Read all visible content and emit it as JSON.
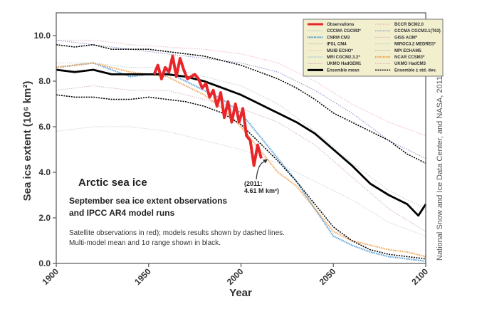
{
  "chart_data": {
    "type": "line",
    "title": "Arctic sea ice",
    "subtitle_lines": [
      "September sea ice extent observations",
      "and IPCC AR4 model runs"
    ],
    "note_lines": [
      "Satellite observations in red); models results shown by dashed lines.",
      "Multi-model mean and 1σ range shown in black."
    ],
    "callout_lines": [
      "(2011:",
      "4.61 M km²)"
    ],
    "callout_point": {
      "x": 2011,
      "y": 4.61
    },
    "xlabel": "Year",
    "ylabel": "Sea ics extent (10⁶ km²)",
    "xlim": [
      1900,
      2100
    ],
    "ylim": [
      0,
      11
    ],
    "xticks": [
      1900,
      1950,
      2000,
      2050,
      2100
    ],
    "yticks": [
      0,
      2,
      4,
      6,
      8,
      10
    ],
    "ytick_labels": [
      "0.0",
      "2.0",
      "4.0",
      "6.0",
      "8.0",
      "10.0"
    ],
    "credit": "National Snow and Ice Data Center, and NASA, 2011",
    "legend_position": "top-right",
    "legend": [
      {
        "label": "Observations",
        "color": "#e8262a",
        "style": "solid-thick"
      },
      {
        "label": "CCCMA CGCM3*",
        "color": "#9fb8c8",
        "style": "dotted"
      },
      {
        "label": "CNRM CM3",
        "color": "#3a8fd0",
        "style": "dotted-thick"
      },
      {
        "label": "IPSL CM4",
        "color": "#b8b0a8",
        "style": "dotted"
      },
      {
        "label": "MUIB ECHO*",
        "color": "#f0b8b0",
        "style": "dotted"
      },
      {
        "label": "MRI CGCM2.3.2*",
        "color": "#7fb8d8",
        "style": "dotted"
      },
      {
        "label": "UKMO HadGEM1",
        "color": "#c8a0b0",
        "style": "dotted"
      },
      {
        "label": "Ensemble mean",
        "color": "#000000",
        "style": "solid-thick"
      },
      {
        "label": "BCCR BCM2.0",
        "color": "#f0a0a0",
        "style": "dotted"
      },
      {
        "label": "CCCMA CGCM3.1(T63)",
        "color": "#7070b8",
        "style": "dotted"
      },
      {
        "label": "GISS AOM*",
        "color": "#e8a8c0",
        "style": "dotted"
      },
      {
        "label": "MIROC3.2 MEDRES*",
        "color": "#a8c8c0",
        "style": "dotted"
      },
      {
        "label": "MPI ECHAM5",
        "color": "#98b0a0",
        "style": "dotted"
      },
      {
        "label": "NCAR CCSM3*",
        "color": "#f09a40",
        "style": "dotted-thick"
      },
      {
        "label": "UKMO HadCM3",
        "color": "#d0a8b8",
        "style": "dotted"
      },
      {
        "label": "Ensemble ± std. dev.",
        "color": "#000000",
        "style": "dashed"
      }
    ],
    "series": [
      {
        "name": "Observations",
        "color": "#e8262a",
        "x": [
          1953,
          1955,
          1957,
          1959,
          1961,
          1963,
          1965,
          1967,
          1969,
          1971,
          1973,
          1975,
          1977,
          1979,
          1981,
          1983,
          1985,
          1987,
          1989,
          1991,
          1993,
          1995,
          1997,
          1999,
          2001,
          2003,
          2005,
          2007,
          2009,
          2011
        ],
        "y": [
          8.3,
          8.7,
          8.1,
          8.6,
          8.4,
          9.1,
          8.2,
          9.0,
          8.5,
          8.1,
          8.2,
          8.3,
          8.1,
          7.7,
          7.9,
          7.3,
          7.6,
          6.9,
          7.5,
          6.4,
          7.1,
          6.2,
          7.0,
          6.2,
          6.8,
          5.6,
          5.4,
          4.3,
          5.2,
          4.61
        ]
      },
      {
        "name": "Ensemble mean",
        "color": "#000000",
        "x": [
          1900,
          1910,
          1920,
          1930,
          1940,
          1950,
          1960,
          1970,
          1980,
          1990,
          2000,
          2010,
          2020,
          2030,
          2040,
          2050,
          2060,
          2070,
          2080,
          2090,
          2096,
          2100
        ],
        "y": [
          8.5,
          8.4,
          8.5,
          8.3,
          8.3,
          8.3,
          8.3,
          8.2,
          8.0,
          7.7,
          7.4,
          7.0,
          6.6,
          6.2,
          5.7,
          5.0,
          4.3,
          3.5,
          3.0,
          2.6,
          2.1,
          2.6
        ]
      },
      {
        "name": "Ensemble + std. dev.",
        "color": "#000000",
        "x": [
          1900,
          1910,
          1920,
          1930,
          1940,
          1950,
          1960,
          1970,
          1980,
          1990,
          2000,
          2010,
          2020,
          2030,
          2040,
          2050,
          2060,
          2070,
          2080,
          2090,
          2100
        ],
        "y": [
          9.6,
          9.5,
          9.6,
          9.4,
          9.4,
          9.4,
          9.3,
          9.2,
          9.1,
          8.9,
          8.7,
          8.4,
          8.1,
          7.7,
          7.2,
          6.6,
          6.2,
          5.8,
          5.4,
          4.8,
          4.4
        ]
      },
      {
        "name": "Ensemble - std. dev.",
        "color": "#000000",
        "x": [
          1900,
          1910,
          1920,
          1930,
          1940,
          1950,
          1960,
          1970,
          1980,
          1990,
          2000,
          2010,
          2020,
          2030,
          2040,
          2050,
          2060,
          2070,
          2080,
          2090,
          2100
        ],
        "y": [
          7.4,
          7.3,
          7.3,
          7.2,
          7.2,
          7.3,
          7.2,
          7.1,
          6.9,
          6.6,
          6.1,
          5.3,
          4.5,
          3.6,
          2.6,
          1.6,
          1.0,
          0.6,
          0.4,
          0.3,
          0.2
        ]
      },
      {
        "name": "CNRM CM3",
        "color": "#3a8fd0",
        "x": [
          1900,
          1920,
          1940,
          1960,
          1980,
          1990,
          2000,
          2010,
          2020,
          2030,
          2040,
          2050,
          2060,
          2070,
          2080,
          2090,
          2100
        ],
        "y": [
          8.6,
          8.8,
          8.2,
          8.4,
          7.6,
          7.2,
          6.6,
          5.6,
          4.6,
          3.6,
          2.4,
          1.2,
          0.8,
          0.5,
          0.3,
          0.2,
          0.1
        ]
      },
      {
        "name": "NCAR CCSM3*",
        "color": "#f09a40",
        "x": [
          1900,
          1920,
          1940,
          1960,
          1980,
          1990,
          2000,
          2010,
          2020,
          2030,
          2040,
          2050,
          2060,
          2070,
          2080,
          2090,
          2100
        ],
        "y": [
          8.6,
          8.8,
          8.4,
          8.2,
          7.4,
          6.8,
          6.0,
          5.0,
          4.0,
          3.4,
          2.4,
          1.4,
          1.0,
          0.8,
          0.6,
          0.5,
          0.3
        ]
      },
      {
        "name": "IPSL CM4",
        "color": "#c8c8c8",
        "x": [
          1900,
          1920,
          1940,
          1960,
          1980,
          2000,
          2020,
          2040,
          2060,
          2080,
          2100
        ],
        "y": [
          5.8,
          6.0,
          6.0,
          5.8,
          5.4,
          5.0,
          4.4,
          3.6,
          2.8,
          1.8,
          1.2
        ]
      },
      {
        "name": "GISS AOM*",
        "color": "#e8a8c0",
        "x": [
          1900,
          1920,
          1940,
          1960,
          1980,
          2000,
          2020,
          2040,
          2060,
          2080,
          2100
        ],
        "y": [
          9.8,
          9.8,
          9.6,
          9.5,
          9.4,
          9.2,
          8.8,
          8.0,
          7.0,
          6.2,
          5.6
        ]
      },
      {
        "name": "CCCMA CGCM3.1(T63)",
        "color": "#7070b8",
        "x": [
          1900,
          1920,
          1940,
          1960,
          1980,
          2000,
          2020,
          2040,
          2060,
          2080,
          2100
        ],
        "y": [
          9.8,
          9.6,
          9.4,
          9.2,
          9.0,
          8.8,
          8.4,
          7.6,
          6.6,
          5.4,
          4.6
        ]
      },
      {
        "name": "MIROC3.2 MEDRES*",
        "color": "#a8c8c0",
        "x": [
          1900,
          1920,
          1940,
          1960,
          1980,
          2000,
          2020,
          2040,
          2060,
          2080,
          2100
        ],
        "y": [
          8.8,
          8.8,
          8.6,
          8.6,
          8.2,
          7.8,
          7.0,
          5.8,
          4.4,
          3.2,
          2.4
        ]
      },
      {
        "name": "UKMO HadGEM1",
        "color": "#c8a0b0",
        "x": [
          1900,
          1920,
          1940,
          1960,
          1980,
          2000,
          2020,
          2040,
          2060,
          2080,
          2100
        ],
        "y": [
          7.6,
          7.8,
          7.6,
          7.6,
          7.2,
          6.8,
          6.2,
          5.2,
          3.8,
          2.4,
          1.4
        ]
      }
    ]
  }
}
